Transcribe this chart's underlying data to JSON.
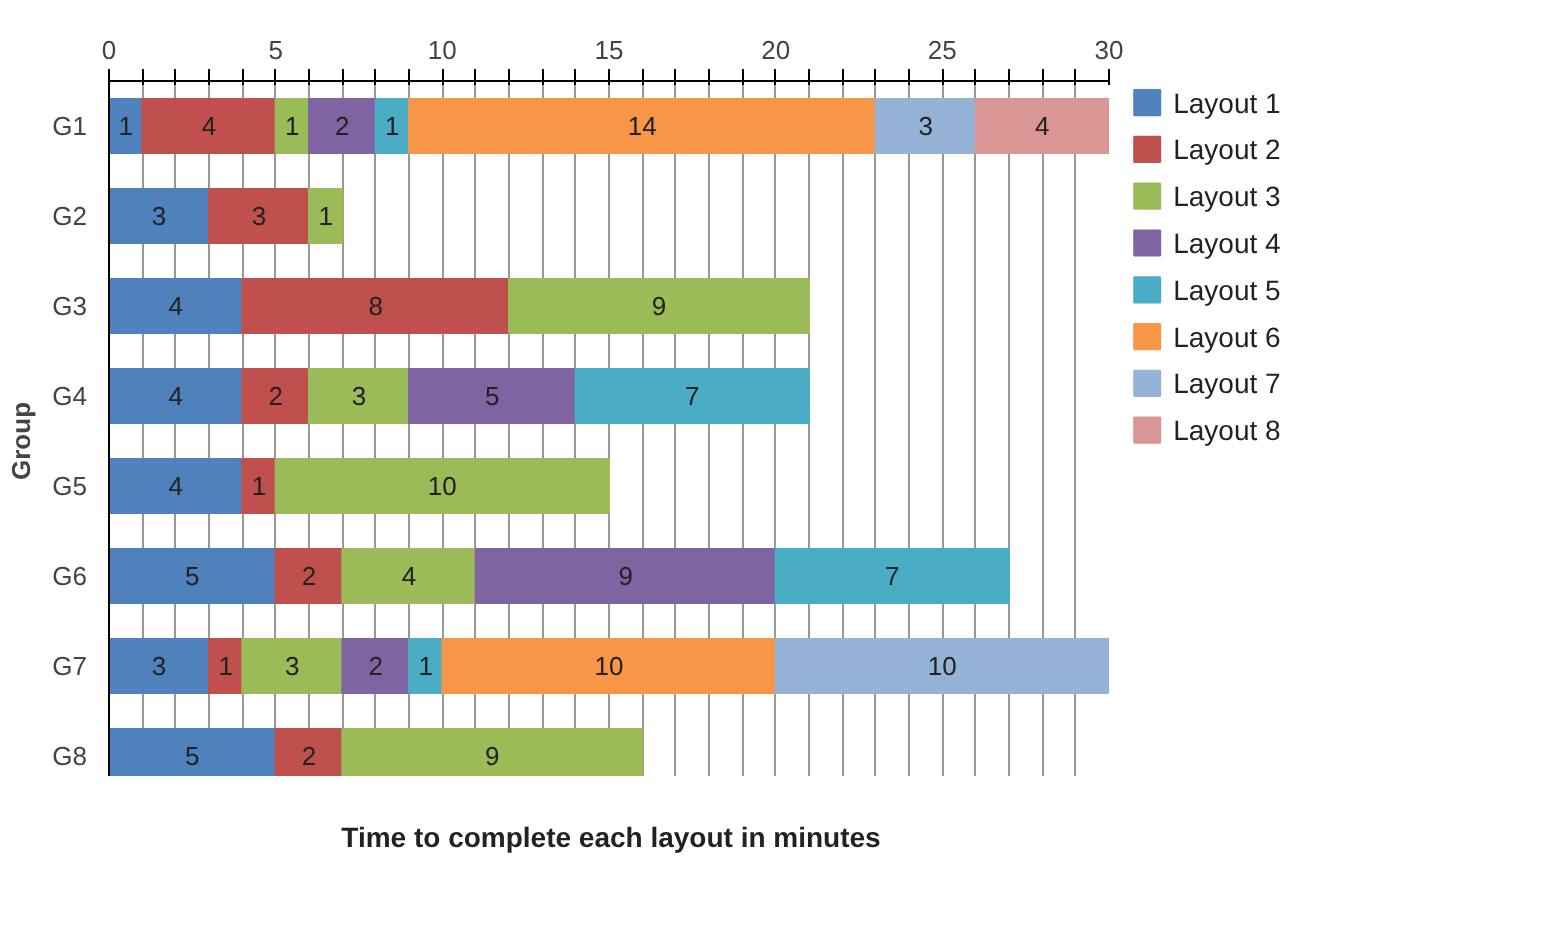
{
  "chart_data": {
    "type": "bar",
    "orientation": "horizontal",
    "stacked": true,
    "xlabel": "Time to complete each layout in minutes",
    "ylabel": "Group",
    "categories": [
      "G1",
      "G2",
      "G3",
      "G4",
      "G5",
      "G6",
      "G7",
      "G8"
    ],
    "series": [
      {
        "name": "Layout 1",
        "color": "#4f81bd",
        "values": [
          1,
          3,
          4,
          4,
          4,
          5,
          3,
          5
        ]
      },
      {
        "name": "Layout 2",
        "color": "#c0504d",
        "values": [
          4,
          3,
          8,
          2,
          1,
          2,
          1,
          2
        ]
      },
      {
        "name": "Layout 3",
        "color": "#9bbb59",
        "values": [
          1,
          1,
          9,
          3,
          10,
          4,
          3,
          9
        ]
      },
      {
        "name": "Layout 4",
        "color": "#8064a2",
        "values": [
          2,
          null,
          null,
          5,
          null,
          9,
          2,
          null
        ]
      },
      {
        "name": "Layout 5",
        "color": "#4bacc6",
        "values": [
          1,
          null,
          null,
          7,
          null,
          7,
          1,
          null
        ]
      },
      {
        "name": "Layout 6",
        "color": "#f79646",
        "values": [
          14,
          null,
          null,
          null,
          null,
          null,
          10,
          null
        ]
      },
      {
        "name": "Layout 7",
        "color": "#95b3d7",
        "values": [
          3,
          null,
          null,
          null,
          null,
          null,
          10,
          null
        ]
      },
      {
        "name": "Layout 8",
        "color": "#d99694",
        "values": [
          4,
          null,
          null,
          null,
          null,
          null,
          null,
          null
        ]
      }
    ],
    "xlim": [
      0,
      30
    ],
    "xticks": [
      0,
      {
        "value": 1,
        "label": null
      },
      {
        "value": 2,
        "label": null
      },
      {
        "value": 3,
        "label": null
      },
      {
        "value": 4,
        "label": null
      },
      5,
      {
        "value": 6,
        "label": null
      },
      {
        "value": 7,
        "label": null
      },
      {
        "value": 8,
        "label": null
      },
      {
        "value": 9,
        "label": null
      },
      10,
      {
        "value": 11,
        "label": null
      },
      {
        "value": 12,
        "label": null
      },
      {
        "value": 13,
        "label": null
      },
      {
        "value": 14,
        "label": null
      },
      15,
      {
        "value": 16,
        "label": null
      },
      {
        "value": 17,
        "label": null
      },
      {
        "value": 18,
        "label": null
      },
      {
        "value": 19,
        "label": null
      },
      20,
      {
        "value": 21,
        "label": null
      },
      {
        "value": 22,
        "label": null
      },
      {
        "value": 23,
        "label": null
      },
      {
        "value": 24,
        "label": null
      },
      25,
      {
        "value": 26,
        "label": null
      },
      {
        "value": 27,
        "label": null
      },
      {
        "value": 28,
        "label": null
      },
      {
        "value": 29,
        "label": null
      },
      30
    ],
    "grid": "x",
    "legend": "right",
    "data_labels": true
  }
}
